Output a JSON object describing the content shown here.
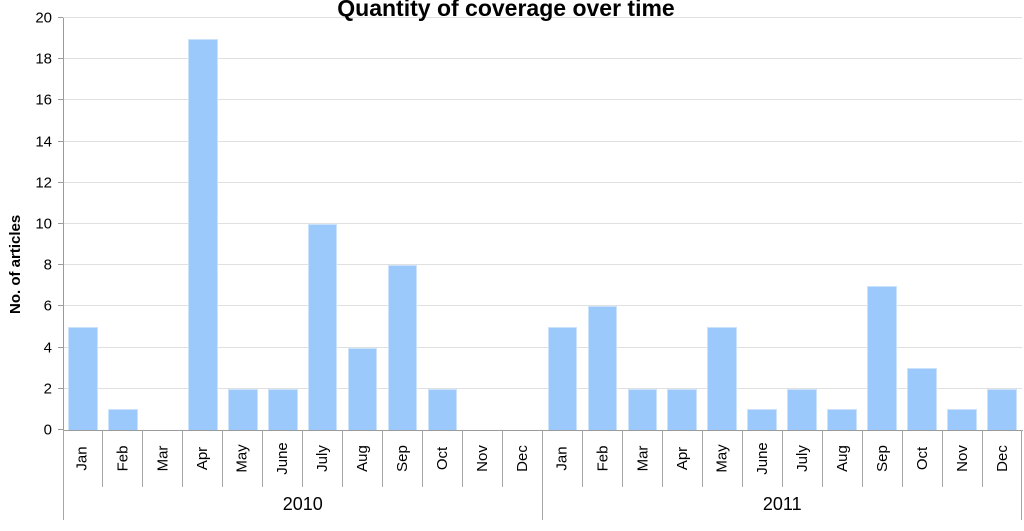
{
  "chart_data": {
    "type": "bar",
    "title": "Quantity of coverage over time",
    "ylabel": "No. of articles",
    "xlabel": "",
    "ylim": [
      0,
      20
    ],
    "yticks": [
      0,
      2,
      4,
      6,
      8,
      10,
      12,
      14,
      16,
      18,
      20
    ],
    "grid": true,
    "legend_position": "none",
    "bar_color": "#9BC9FB",
    "bar_border_color": "#CBE2FC",
    "gridline_color": "#E0E0E0",
    "axis_color": "#9B9B9B",
    "groups": [
      {
        "year": "2010",
        "months": [
          "Jan",
          "Feb",
          "Mar",
          "Apr",
          "May",
          "June",
          "July",
          "Aug",
          "Sep",
          "Oct",
          "Nov",
          "Dec"
        ],
        "values": [
          5,
          1,
          0,
          19,
          2,
          2,
          10,
          4,
          8,
          2,
          0,
          0
        ]
      },
      {
        "year": "2011",
        "months": [
          "Jan",
          "Feb",
          "Mar",
          "Apr",
          "May",
          "June",
          "July",
          "Aug",
          "Sep",
          "Oct",
          "Nov",
          "Dec"
        ],
        "values": [
          5,
          6,
          2,
          2,
          5,
          1,
          2,
          1,
          7,
          3,
          1,
          2
        ]
      }
    ]
  }
}
